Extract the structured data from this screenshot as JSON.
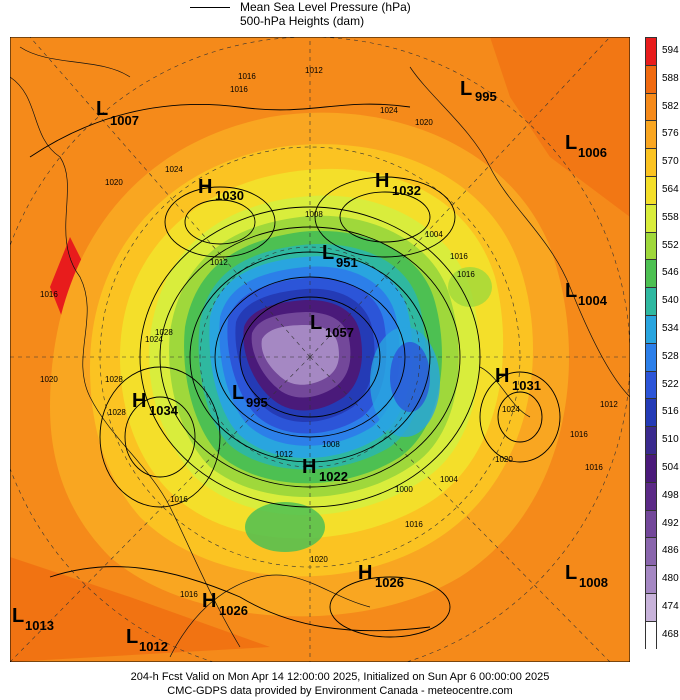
{
  "legend": {
    "pressure_label": "Mean Sea Level Pressure (hPa)",
    "heights_label": "500-hPa Heights (dam)"
  },
  "colorbar": {
    "levels": [
      "594",
      "588",
      "582",
      "576",
      "570",
      "564",
      "558",
      "552",
      "546",
      "540",
      "534",
      "528",
      "522",
      "516",
      "510",
      "504",
      "498",
      "492",
      "486",
      "480",
      "474",
      "468"
    ],
    "colors": [
      "#e81c1c",
      "#f06a10",
      "#f58a1a",
      "#f9a621",
      "#fbc322",
      "#f4df2a",
      "#d9ed3c",
      "#9fd83b",
      "#4dc052",
      "#2fb8a0",
      "#29a5df",
      "#2c7fe9",
      "#2c55d8",
      "#243bb6",
      "#3a2a8e",
      "#4a1a7a",
      "#5b2a86",
      "#73489a",
      "#8a66ad",
      "#a588c3",
      "#c8b3da",
      "#ffffff"
    ]
  },
  "systems": [
    {
      "type": "L",
      "value": "1007"
    },
    {
      "type": "L",
      "value": "995"
    },
    {
      "type": "L",
      "value": "1006"
    },
    {
      "type": "H",
      "value": "1030"
    },
    {
      "type": "H",
      "value": "1032"
    },
    {
      "type": "L",
      "value": "951"
    },
    {
      "type": "L",
      "value": "1004"
    },
    {
      "type": "L",
      "value": "1057"
    },
    {
      "type": "H",
      "value": "1034"
    },
    {
      "type": "L",
      "value": "995"
    },
    {
      "type": "H",
      "value": "1031"
    },
    {
      "type": "H",
      "value": "1022"
    },
    {
      "type": "H",
      "value": "1026"
    },
    {
      "type": "L",
      "value": "1008"
    },
    {
      "type": "L",
      "value": "1013"
    },
    {
      "type": "H",
      "value": "1026"
    },
    {
      "type": "L",
      "value": "1012"
    }
  ],
  "isobar_labels": [
    "1016",
    "1012",
    "1024",
    "1020",
    "1016",
    "1024",
    "1028",
    "1008",
    "1004",
    "1016",
    "1012",
    "1016",
    "1024",
    "1016",
    "1000",
    "1004",
    "1016",
    "1020",
    "1012",
    "1016",
    "1020",
    "1028",
    "1024",
    "1020",
    "1016",
    "1008",
    "1016",
    "1020",
    "1028",
    "1012",
    "1016"
  ],
  "footer": {
    "line1": "204-h Fcst Valid on Mon Apr 14 12:00:00 2025, Initialized on Sun Apr  6 00:00:00 2025",
    "line2": "CMC-GDPS data provided by Environment Canada - meteocentre.com"
  }
}
